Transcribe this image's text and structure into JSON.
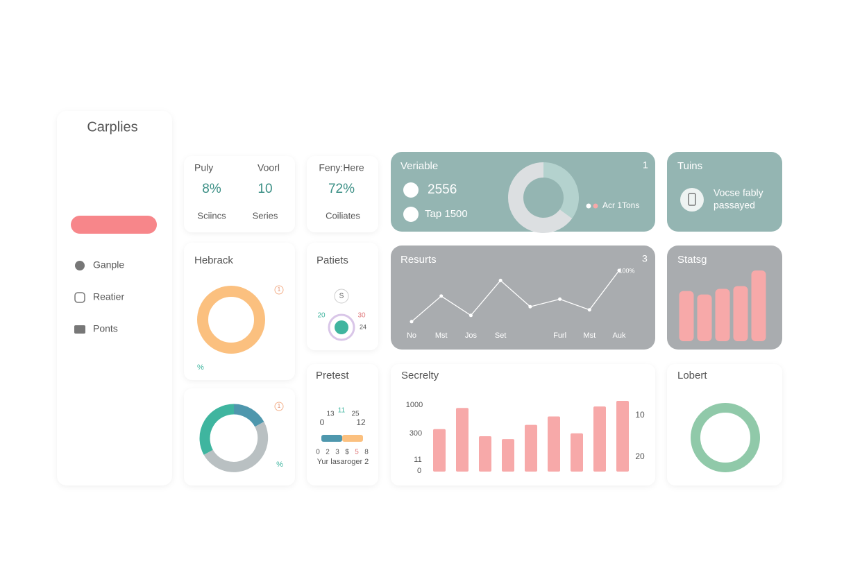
{
  "sidebar": {
    "title": "Carplies",
    "nav": [
      "Ganple",
      "Reatier",
      "Ponts"
    ]
  },
  "stats": [
    {
      "label": "Puly",
      "value": "8%",
      "caption": "Sciincs"
    },
    {
      "label": "Voorl",
      "value": "10",
      "caption": "Series"
    },
    {
      "label": "Feny:Here",
      "value": "72%",
      "caption": "Coiliates"
    }
  ],
  "variable": {
    "title": "Veriable",
    "badge": "1",
    "metrics": [
      "2556",
      "Tap 1500"
    ],
    "legend": "Acr 1Tons",
    "chart_data": {
      "type": "pie",
      "values": [
        35,
        65
      ],
      "colors": [
        "#b4d2ce",
        "#dcdfe1"
      ]
    }
  },
  "tuins": {
    "title": "Tuins",
    "text": [
      "Vocse fably",
      "passayed"
    ]
  },
  "results": {
    "title": "Resurts",
    "badge": "3",
    "chart_data": {
      "type": "line",
      "categories": [
        "No",
        "Mst",
        "Jos",
        "Set",
        null,
        "Furl",
        "Mst",
        "Auk"
      ],
      "values": [
        18,
        59,
        28,
        84,
        42,
        54,
        37,
        100
      ],
      "annotation": "100%",
      "color": "#ffffff",
      "ylim": [
        0,
        100
      ]
    }
  },
  "statsg": {
    "title": "Statsg",
    "chart_data": {
      "type": "bar",
      "values": [
        71,
        66,
        74,
        78,
        100
      ],
      "color": "#f7a9a9",
      "ylim": [
        0,
        100
      ]
    }
  },
  "hebrack": {
    "title": "Hebrack",
    "badge": "1",
    "note": "%",
    "chart_data": {
      "type": "pie",
      "values": [
        100
      ],
      "colors": [
        "#fbc07f"
      ]
    }
  },
  "patiets": {
    "title": "Patiets",
    "labels": [
      "S",
      "20",
      "30",
      "24"
    ]
  },
  "mix": {
    "badge": "1",
    "note": "%",
    "chart_data": {
      "type": "pie",
      "values": [
        17,
        50,
        33
      ],
      "colors": [
        "#4e97ad",
        "#b9c0c2",
        "#3fb59f"
      ]
    }
  },
  "pretest": {
    "title": "Pretest",
    "scale_top": [
      "13",
      "11",
      "25"
    ],
    "scale_ends": [
      "0",
      "12"
    ],
    "scale_bottom": [
      "0",
      "2",
      "3",
      "$",
      "5",
      "8"
    ],
    "caption": "Yur lasaroger 2",
    "chart_data": {
      "type": "progress",
      "values": [
        50,
        50
      ],
      "colors": [
        "#4e97ad",
        "#fbc07f"
      ]
    }
  },
  "secrelty": {
    "title": "Secrelty",
    "left_labels": [
      "1000",
      "300",
      "11",
      "0"
    ],
    "right_labels": [
      "10",
      "20"
    ],
    "chart_data": {
      "type": "bar",
      "values": [
        60,
        90,
        50,
        46,
        66,
        78,
        54,
        92,
        100
      ],
      "color": "#f7a9a9",
      "ylim": [
        0,
        100
      ]
    }
  },
  "lobert": {
    "title": "Lobert",
    "chart_data": {
      "type": "pie",
      "values": [
        100
      ],
      "colors": [
        "#90c9a9"
      ]
    }
  }
}
